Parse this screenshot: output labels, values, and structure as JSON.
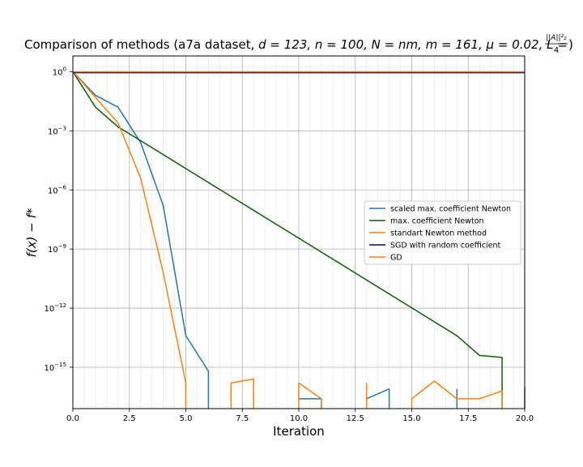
{
  "chart_data": {
    "type": "line",
    "title_main": "Comparison of methods (a7a dataset, ",
    "title_math": "d = 123, n = 100, N = nm, m = 161, μ = 0.02, L = ",
    "title_frac_num": "||A||²₂",
    "title_frac_den": "4",
    "title_close": ")",
    "xlabel": "Iteration",
    "ylabel": "f(x) − f*",
    "xlim": [
      0,
      20
    ],
    "ylim_log10": [
      -17.1,
      0.8
    ],
    "y_scale": "log",
    "grid": true,
    "minor_x_grid": true,
    "legend_position": "center-right",
    "x_ticks": [
      "0.0",
      "2.5",
      "5.0",
      "7.5",
      "10.0",
      "12.5",
      "15.0",
      "17.5",
      "20.0"
    ],
    "y_ticks": [
      {
        "base": "10",
        "exp": "0",
        "log": 0
      },
      {
        "base": "10",
        "exp": "−3",
        "log": -3
      },
      {
        "base": "10",
        "exp": "−6",
        "log": -6
      },
      {
        "base": "10",
        "exp": "−9",
        "log": -9
      },
      {
        "base": "10",
        "exp": "−12",
        "log": -12
      },
      {
        "base": "10",
        "exp": "−15",
        "log": -15
      }
    ],
    "series": [
      {
        "name": "scaled max. coefficient Newton",
        "color": "#1f77b4",
        "segments": [
          [
            [
              0,
              0
            ],
            [
              1,
              -1.2
            ],
            [
              2,
              -1.8
            ],
            [
              3,
              -3.6
            ],
            [
              4,
              -6.8
            ],
            [
              5,
              -13.4
            ],
            [
              6,
              -15.2
            ],
            [
              6,
              -17.1
            ]
          ],
          [
            [
              10,
              -16.6
            ],
            [
              11,
              -16.6
            ],
            [
              11,
              -17.1
            ]
          ],
          [
            [
              13,
              -16.6
            ],
            [
              14,
              -16.1
            ],
            [
              14,
              -17.1
            ]
          ],
          [
            [
              17,
              -16.1
            ],
            [
              17,
              -17.1
            ]
          ],
          [
            [
              20,
              -16.0
            ],
            [
              20,
              -17.1
            ]
          ]
        ]
      },
      {
        "name": "max. coefficient Newton",
        "color": "#006400",
        "segments": [
          [
            [
              0,
              0
            ],
            [
              1,
              -1.8
            ],
            [
              2,
              -2.8
            ],
            [
              3,
              -3.5
            ],
            [
              17,
              -13.4
            ],
            [
              18,
              -14.4
            ],
            [
              19,
              -14.5
            ],
            [
              19,
              -17.1
            ]
          ]
        ]
      },
      {
        "name": "standart Newton method",
        "color": "#ff7f0e",
        "segments": [
          [
            [
              0,
              0
            ],
            [
              2,
              -2.6
            ],
            [
              3,
              -5.4
            ],
            [
              4,
              -10.2
            ],
            [
              5,
              -15.8
            ],
            [
              5,
              -17.1
            ]
          ],
          [
            [
              7,
              -17.1
            ],
            [
              7,
              -15.8
            ],
            [
              8,
              -15.6
            ],
            [
              8,
              -17.1
            ]
          ],
          [
            [
              10,
              -17.1
            ],
            [
              10,
              -15.8
            ],
            [
              11,
              -16.6
            ],
            [
              11,
              -17.1
            ]
          ],
          [
            [
              13,
              -17.1
            ],
            [
              13,
              -15.8
            ]
          ],
          [
            [
              15,
              -17.1
            ],
            [
              15,
              -16.6
            ],
            [
              16,
              -15.7
            ],
            [
              17,
              -16.6
            ],
            [
              18,
              -16.6
            ],
            [
              19,
              -16.2
            ],
            [
              19,
              -17.1
            ]
          ]
        ]
      },
      {
        "name": "SGD with random coefficient",
        "color": "#00008b",
        "segments": [
          [
            [
              0,
              -0.05
            ],
            [
              20,
              -0.05
            ]
          ]
        ]
      },
      {
        "name": "GD",
        "color": "#ff7f0e",
        "segments": [
          [
            [
              0,
              0
            ],
            [
              20,
              0
            ]
          ]
        ]
      }
    ]
  }
}
